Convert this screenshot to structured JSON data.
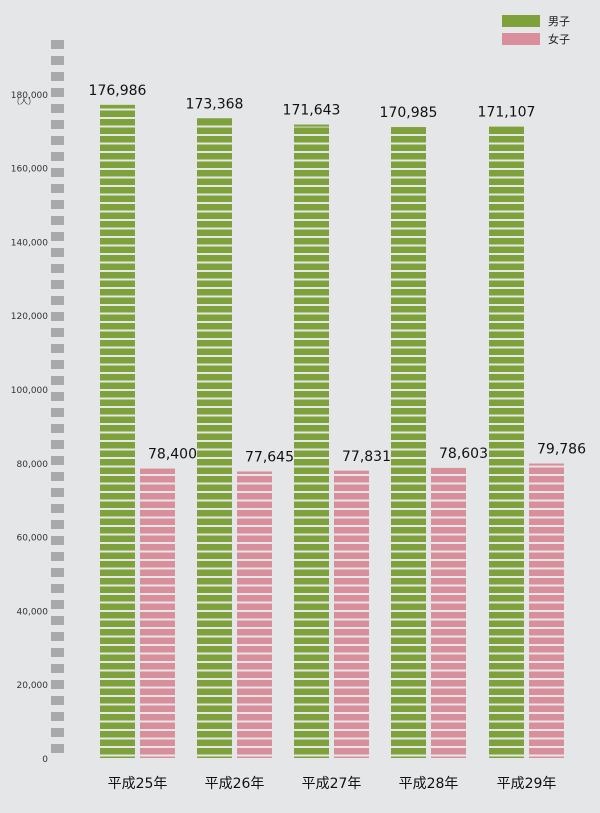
{
  "chart_data": {
    "type": "bar",
    "title": "",
    "xlabel": "",
    "ylabel": "",
    "unit_label": "（人）",
    "categories": [
      "平成25年",
      "平成26年",
      "平成27年",
      "平成28年",
      "平成29年"
    ],
    "series": [
      {
        "name": "男子",
        "color": "#7fa13c",
        "values": [
          176986,
          173368,
          171643,
          170985,
          171107
        ]
      },
      {
        "name": "女子",
        "color": "#d98e9c",
        "values": [
          78400,
          77645,
          77831,
          78603,
          79786
        ]
      }
    ],
    "value_labels": {
      "男子": [
        "176,986",
        "173,368",
        "171,643",
        "170,985",
        "171,107"
      ],
      "女子": [
        "78,400",
        "77,645",
        "77,831",
        "78,603",
        "79,786"
      ]
    },
    "yticks": [
      0,
      20000,
      40000,
      60000,
      80000,
      100000,
      120000,
      140000,
      160000,
      180000
    ],
    "ytick_labels": [
      "0",
      "20,000",
      "40,000",
      "60,000",
      "80,000",
      "100,000",
      "120,000",
      "140,000",
      "160,000",
      "180,000"
    ],
    "ylim": [
      0,
      190000
    ],
    "legend_position": "top-right",
    "grid": false
  }
}
